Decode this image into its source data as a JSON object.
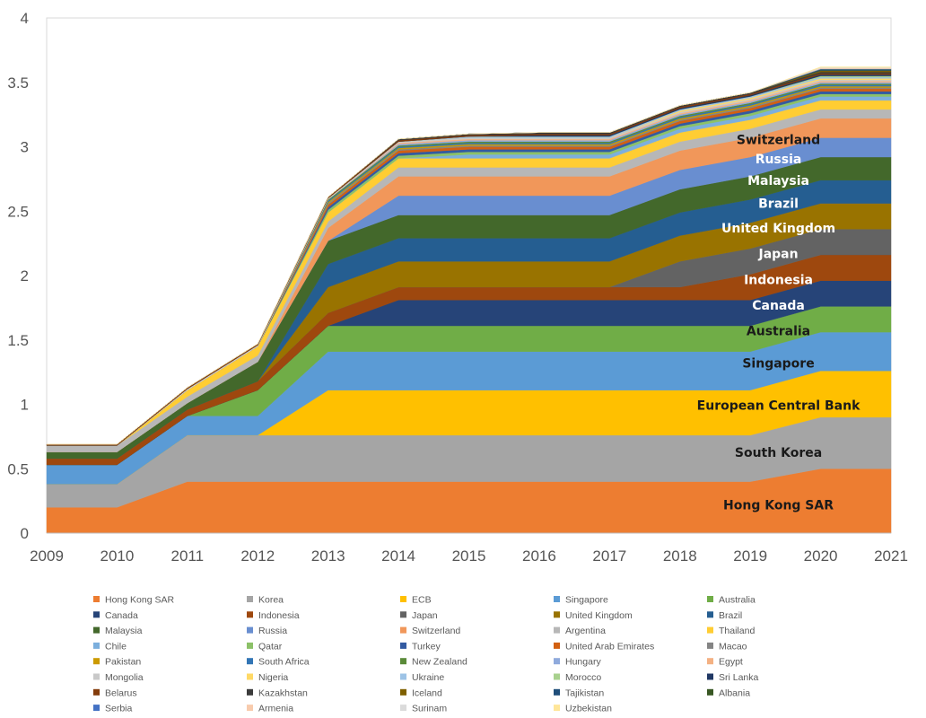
{
  "chart_data": {
    "type": "area",
    "stacked": true,
    "x": [
      2009,
      2010,
      2011,
      2012,
      2013,
      2014,
      2015,
      2016,
      2017,
      2018,
      2019,
      2020,
      2021
    ],
    "ylim": [
      0,
      4
    ],
    "yticks": [
      "0",
      "0.5",
      "1",
      "1.5",
      "2",
      "2.5",
      "3",
      "3.5",
      "4"
    ],
    "xticks": [
      "2009",
      "2010",
      "2011",
      "2012",
      "2013",
      "2014",
      "2015",
      "2016",
      "2017",
      "2018",
      "2019",
      "2020",
      "2021"
    ],
    "grid": false,
    "legend_position": "bottom",
    "series": [
      {
        "name": "Hong Kong SAR",
        "band_label": "Hong Kong SAR",
        "label_color": "#1a1a1a",
        "color": "#ED7D31",
        "values": [
          0.2,
          0.2,
          0.4,
          0.4,
          0.4,
          0.4,
          0.4,
          0.4,
          0.4,
          0.4,
          0.4,
          0.5,
          0.5
        ]
      },
      {
        "name": "Korea",
        "band_label": "South Korea",
        "label_color": "#1a1a1a",
        "color": "#A5A5A5",
        "values": [
          0.18,
          0.18,
          0.36,
          0.36,
          0.36,
          0.36,
          0.36,
          0.36,
          0.36,
          0.36,
          0.36,
          0.4,
          0.4
        ]
      },
      {
        "name": "ECB",
        "band_label": "European Central Bank",
        "label_color": "#1a1a1a",
        "color": "#FFC000",
        "values": [
          0,
          0,
          0,
          0,
          0.35,
          0.35,
          0.35,
          0.35,
          0.35,
          0.35,
          0.35,
          0.36,
          0.36
        ]
      },
      {
        "name": "Singapore",
        "band_label": "Singapore",
        "label_color": "#1a1a1a",
        "color": "#5B9BD5",
        "values": [
          0.15,
          0.15,
          0.15,
          0.15,
          0.3,
          0.3,
          0.3,
          0.3,
          0.3,
          0.3,
          0.3,
          0.3,
          0.3
        ]
      },
      {
        "name": "Australia",
        "band_label": "Australia",
        "label_color": "#1a1a1a",
        "color": "#70AD47",
        "values": [
          0,
          0,
          0,
          0.2,
          0.2,
          0.2,
          0.2,
          0.2,
          0.2,
          0.2,
          0.2,
          0.2,
          0.2
        ]
      },
      {
        "name": "Canada",
        "band_label": "Canada",
        "label_color": "#ffffff",
        "color": "#264478",
        "values": [
          0,
          0,
          0,
          0,
          0,
          0.2,
          0.2,
          0.2,
          0.2,
          0.2,
          0.2,
          0.2,
          0.2
        ]
      },
      {
        "name": "Indonesia",
        "band_label": "Indonesia",
        "label_color": "#ffffff",
        "color": "#9E480E",
        "values": [
          0.05,
          0.05,
          0.05,
          0.07,
          0.1,
          0.1,
          0.1,
          0.1,
          0.1,
          0.1,
          0.2,
          0.2,
          0.2
        ]
      },
      {
        "name": "Japan",
        "band_label": "Japan",
        "label_color": "#ffffff",
        "color": "#636363",
        "values": [
          0,
          0,
          0,
          0,
          0,
          0,
          0,
          0,
          0,
          0.2,
          0.2,
          0.2,
          0.2
        ]
      },
      {
        "name": "United Kingdom",
        "band_label": "United Kingdom",
        "label_color": "#ffffff",
        "color": "#997300",
        "values": [
          0,
          0,
          0,
          0,
          0.2,
          0.2,
          0.2,
          0.2,
          0.2,
          0.2,
          0.2,
          0.2,
          0.2
        ]
      },
      {
        "name": "Brazil",
        "band_label": "Brazil",
        "label_color": "#ffffff",
        "color": "#255E91",
        "values": [
          0,
          0,
          0,
          0,
          0.18,
          0.18,
          0.18,
          0.18,
          0.18,
          0.18,
          0.18,
          0.18,
          0.18
        ]
      },
      {
        "name": "Malaysia",
        "band_label": "Malaysia",
        "label_color": "#ffffff",
        "color": "#43682B",
        "values": [
          0.05,
          0.05,
          0.05,
          0.15,
          0.18,
          0.18,
          0.18,
          0.18,
          0.18,
          0.18,
          0.18,
          0.18,
          0.18
        ]
      },
      {
        "name": "Russia",
        "band_label": "Russia",
        "label_color": "#ffffff",
        "color": "#698ED0",
        "values": [
          0,
          0,
          0,
          0,
          0,
          0.15,
          0.15,
          0.15,
          0.15,
          0.15,
          0.15,
          0.15,
          0.15
        ]
      },
      {
        "name": "Switzerland",
        "band_label": "Switzerland",
        "label_color": "#1a1a1a",
        "color": "#F1975A",
        "values": [
          0,
          0,
          0,
          0,
          0.1,
          0.15,
          0.15,
          0.15,
          0.15,
          0.15,
          0.15,
          0.15,
          0.15
        ]
      },
      {
        "name": "Argentina",
        "color": "#B7B7B7",
        "values": [
          0.05,
          0.05,
          0.05,
          0.05,
          0.05,
          0.07,
          0.07,
          0.07,
          0.07,
          0.07,
          0.07,
          0.07,
          0.07
        ]
      },
      {
        "name": "Thailand",
        "color": "#FFCD33",
        "values": [
          0,
          0,
          0.05,
          0.07,
          0.07,
          0.07,
          0.07,
          0.07,
          0.07,
          0.07,
          0.07,
          0.07,
          0.07
        ]
      },
      {
        "name": "Chile",
        "color": "#7CAFDD",
        "values": [
          0,
          0,
          0,
          0,
          0,
          0,
          0.03,
          0.03,
          0.03,
          0.03,
          0.03,
          0.03,
          0.03
        ]
      },
      {
        "name": "Qatar",
        "color": "#8CC168",
        "values": [
          0,
          0,
          0,
          0,
          0.02,
          0.02,
          0.02,
          0.02,
          0.02,
          0.02,
          0.02,
          0.02,
          0.02
        ]
      },
      {
        "name": "Turkey",
        "color": "#335AA1",
        "values": [
          0,
          0,
          0,
          0,
          0.02,
          0.02,
          0.02,
          0.02,
          0.02,
          0.02,
          0.02,
          0.02,
          0.02
        ]
      },
      {
        "name": "United Arab Emirates",
        "color": "#D26012",
        "values": [
          0,
          0,
          0,
          0,
          0.02,
          0.02,
          0.02,
          0.02,
          0.02,
          0.02,
          0.02,
          0.02,
          0.02
        ]
      },
      {
        "name": "Macao",
        "color": "#848484",
        "values": [
          0,
          0,
          0,
          0,
          0.01,
          0.01,
          0.01,
          0.01,
          0.01,
          0.01,
          0.01,
          0.01,
          0.01
        ]
      },
      {
        "name": "Pakistan",
        "color": "#CC9A00",
        "values": [
          0,
          0,
          0,
          0,
          0.01,
          0.01,
          0.01,
          0.01,
          0.01,
          0.01,
          0.01,
          0.01,
          0.01
        ]
      },
      {
        "name": "South Africa",
        "color": "#3275B5",
        "values": [
          0,
          0,
          0,
          0,
          0.01,
          0.01,
          0.01,
          0.01,
          0.01,
          0.01,
          0.01,
          0.01,
          0.01
        ]
      },
      {
        "name": "New Zealand",
        "color": "#5A8A39",
        "values": [
          0,
          0,
          0,
          0,
          0.01,
          0.01,
          0.01,
          0.01,
          0.01,
          0.01,
          0.01,
          0.01,
          0.01
        ]
      },
      {
        "name": "Hungary",
        "color": "#8FAADC",
        "values": [
          0,
          0,
          0,
          0,
          0,
          0.01,
          0.01,
          0.01,
          0.01,
          0.01,
          0.01,
          0.01,
          0.01
        ]
      },
      {
        "name": "Egypt",
        "color": "#F4B183",
        "values": [
          0,
          0,
          0,
          0,
          0,
          0.01,
          0.01,
          0.01,
          0.01,
          0.01,
          0.01,
          0.01,
          0.01
        ]
      },
      {
        "name": "Mongolia",
        "color": "#C9C9C9",
        "values": [
          0,
          0,
          0.01,
          0.01,
          0.01,
          0.01,
          0.01,
          0.01,
          0.01,
          0.01,
          0.01,
          0.01,
          0.01
        ]
      },
      {
        "name": "Nigeria",
        "color": "#FFD966",
        "values": [
          0,
          0,
          0,
          0,
          0,
          0,
          0,
          0,
          0,
          0.01,
          0.01,
          0.01,
          0.01
        ]
      },
      {
        "name": "Ukraine",
        "color": "#9DC3E6",
        "values": [
          0,
          0,
          0,
          0,
          0,
          0,
          0.01,
          0.01,
          0.01,
          0.01,
          0.01,
          0.01,
          0.01
        ]
      },
      {
        "name": "Morocco",
        "color": "#A9D18E",
        "values": [
          0,
          0,
          0,
          0,
          0,
          0,
          0,
          0,
          0,
          0,
          0,
          0.01,
          0.01
        ]
      },
      {
        "name": "Sri Lanka",
        "color": "#203864",
        "values": [
          0,
          0,
          0,
          0,
          0,
          0,
          0,
          0.01,
          0.01,
          0.01,
          0.01,
          0.01,
          0.01
        ]
      },
      {
        "name": "Belarus",
        "color": "#843C0C",
        "values": [
          0.01,
          0.01,
          0.01,
          0.01,
          0.01,
          0.01,
          0.01,
          0.01,
          0.01,
          0.01,
          0.01,
          0.01,
          0.01
        ]
      },
      {
        "name": "Kazakhstan",
        "color": "#3B3B3B",
        "values": [
          0,
          0,
          0,
          0,
          0,
          0.01,
          0.01,
          0.01,
          0.01,
          0.01,
          0.01,
          0.01,
          0.01
        ]
      },
      {
        "name": "Iceland",
        "color": "#7F6000",
        "values": [
          0,
          0,
          0,
          0,
          0,
          0,
          0,
          0,
          0,
          0,
          0,
          0.01,
          0.01
        ]
      },
      {
        "name": "Tajikistan",
        "color": "#1F4E79",
        "values": [
          0,
          0,
          0,
          0,
          0,
          0,
          0,
          0,
          0,
          0,
          0,
          0.005,
          0.005
        ]
      },
      {
        "name": "Albania",
        "color": "#385723",
        "values": [
          0,
          0,
          0,
          0,
          0,
          0,
          0,
          0,
          0,
          0,
          0,
          0.005,
          0.005
        ]
      },
      {
        "name": "Serbia",
        "color": "#4472C4",
        "values": [
          0,
          0,
          0,
          0,
          0,
          0,
          0,
          0,
          0,
          0,
          0,
          0.005,
          0.005
        ]
      },
      {
        "name": "Armenia",
        "color": "#F8CBAD",
        "values": [
          0,
          0,
          0,
          0,
          0,
          0,
          0,
          0,
          0,
          0,
          0,
          0.005,
          0.005
        ]
      },
      {
        "name": "Surinam",
        "color": "#DBDBDB",
        "values": [
          0,
          0,
          0,
          0,
          0,
          0,
          0,
          0,
          0,
          0,
          0,
          0.005,
          0.005
        ]
      },
      {
        "name": "Uzbekistan",
        "color": "#FFE699",
        "values": [
          0,
          0,
          0,
          0,
          0,
          0,
          0,
          0,
          0,
          0,
          0,
          0.005,
          0.005
        ]
      }
    ]
  }
}
